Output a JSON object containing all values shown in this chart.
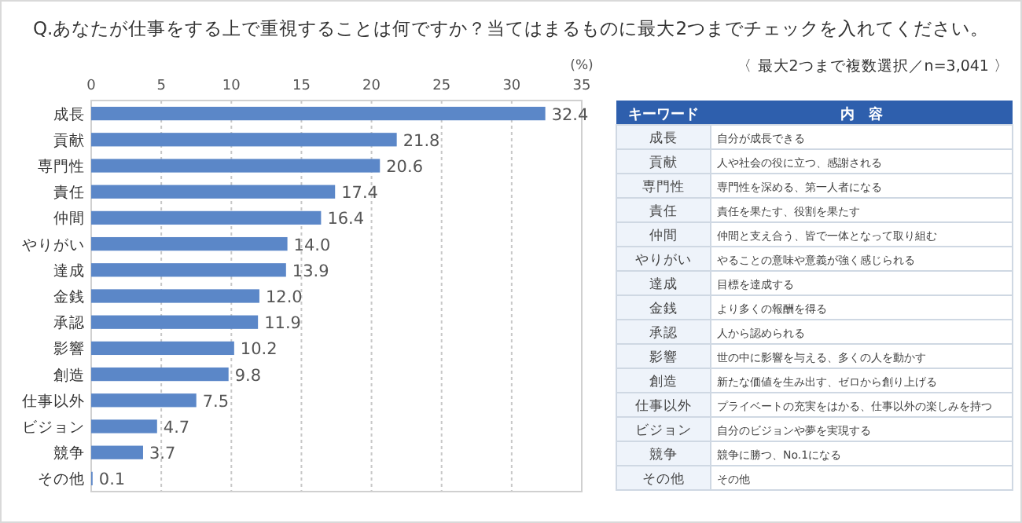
{
  "chart_data": [
    {
      "type": "bar",
      "title": "Q.あなたが仕事をする上で重視することは何ですか？当てはまるものに最大2つまでチェックを入れてください。",
      "xlabel": "(%)",
      "orientation": "horizontal",
      "categories": [
        "成長",
        "貢献",
        "専門性",
        "責任",
        "仲間",
        "やりがい",
        "達成",
        "金銭",
        "承認",
        "影響",
        "創造",
        "仕事以外",
        "ビジョン",
        "競争",
        "その他"
      ],
      "values": [
        32.4,
        21.8,
        20.6,
        17.4,
        16.4,
        14.0,
        13.9,
        12.0,
        11.9,
        10.2,
        9.8,
        7.5,
        4.7,
        3.7,
        0.1
      ],
      "value_labels": [
        "32.4",
        "21.8",
        "20.6",
        "17.4",
        "16.4",
        "14.0",
        "13.9",
        "12.0",
        "11.9",
        "10.2",
        "9.8",
        "7.5",
        "4.7",
        "3.7",
        "0.1"
      ],
      "color": "#5b87c8",
      "xlim": [
        0,
        35
      ],
      "xticks": [
        0,
        5,
        10,
        15,
        20,
        25,
        30,
        35
      ],
      "grid": "x"
    },
    {
      "type": "other",
      "subtitle": "〈 最大2つまで複数選択／n=3,041 〉",
      "categories": [
        "キーワード",
        "内　容"
      ],
      "cell_labels": [
        [
          "成長",
          "自分が成長できる"
        ],
        [
          "貢献",
          "人や社会の役に立つ、感謝される"
        ],
        [
          "専門性",
          "専門性を深める、第一人者になる"
        ],
        [
          "責任",
          "責任を果たす、役割を果たす"
        ],
        [
          "仲間",
          "仲間と支え合う、皆で一体となって取り組む"
        ],
        [
          "やりがい",
          "やることの意味や意義が強く感じられる"
        ],
        [
          "達成",
          "目標を達成する"
        ],
        [
          "金銭",
          "より多くの報酬を得る"
        ],
        [
          "承認",
          "人から認められる"
        ],
        [
          "影響",
          "世の中に影響を与える、多くの人を動かす"
        ],
        [
          "創造",
          "新たな価値を生み出す、ゼロから創り上げる"
        ],
        [
          "仕事以外",
          "プライベートの充実をはかる、仕事以外の楽しみを持つ"
        ],
        [
          "ビジョン",
          "自分のビジョンや夢を実現する"
        ],
        [
          "競争",
          "競争に勝つ、No.1になる"
        ],
        [
          "その他",
          "その他"
        ]
      ]
    }
  ]
}
